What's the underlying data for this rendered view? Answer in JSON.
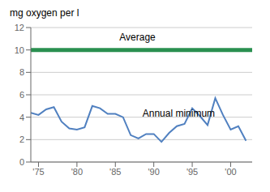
{
  "chart_data": {
    "type": "line",
    "y_label": "mg oxygen per l",
    "x": [
      1974,
      1975,
      1976,
      1977,
      1978,
      1979,
      1980,
      1981,
      1982,
      1983,
      1984,
      1985,
      1986,
      1987,
      1988,
      1989,
      1990,
      1991,
      1992,
      1993,
      1994,
      1995,
      1996,
      1997,
      1998,
      1999,
      2000,
      2001,
      2002
    ],
    "series": [
      {
        "name": "Annual minimum",
        "color": "#5080c0",
        "values": [
          4.4,
          4.2,
          4.7,
          4.9,
          3.6,
          3.0,
          2.9,
          3.1,
          5.0,
          4.8,
          4.3,
          4.3,
          4.0,
          2.4,
          2.1,
          2.5,
          2.5,
          1.8,
          2.6,
          3.2,
          3.4,
          4.8,
          4.1,
          3.3,
          5.7,
          4.2,
          2.9,
          3.2,
          1.9
        ]
      }
    ],
    "reference_line": {
      "value": 10,
      "color": "#2a9050"
    },
    "annotations": [
      {
        "text": "Average",
        "x": 1985,
        "y": 10.45
      },
      {
        "text": "Annual minimum",
        "x": 1988,
        "y": 3.7
      }
    ],
    "xlim": [
      1974,
      2002.8
    ],
    "xticks": [
      {
        "value": 1975,
        "label": "'75"
      },
      {
        "value": 1980,
        "label": "'80"
      },
      {
        "value": 1985,
        "label": "'85"
      },
      {
        "value": 1990,
        "label": "'90"
      },
      {
        "value": 1995,
        "label": "'95"
      },
      {
        "value": 2000,
        "label": "'00"
      }
    ],
    "ylim": [
      0,
      12
    ],
    "yticks": [
      0,
      2,
      4,
      6,
      8,
      10,
      12
    ],
    "grid": true
  }
}
